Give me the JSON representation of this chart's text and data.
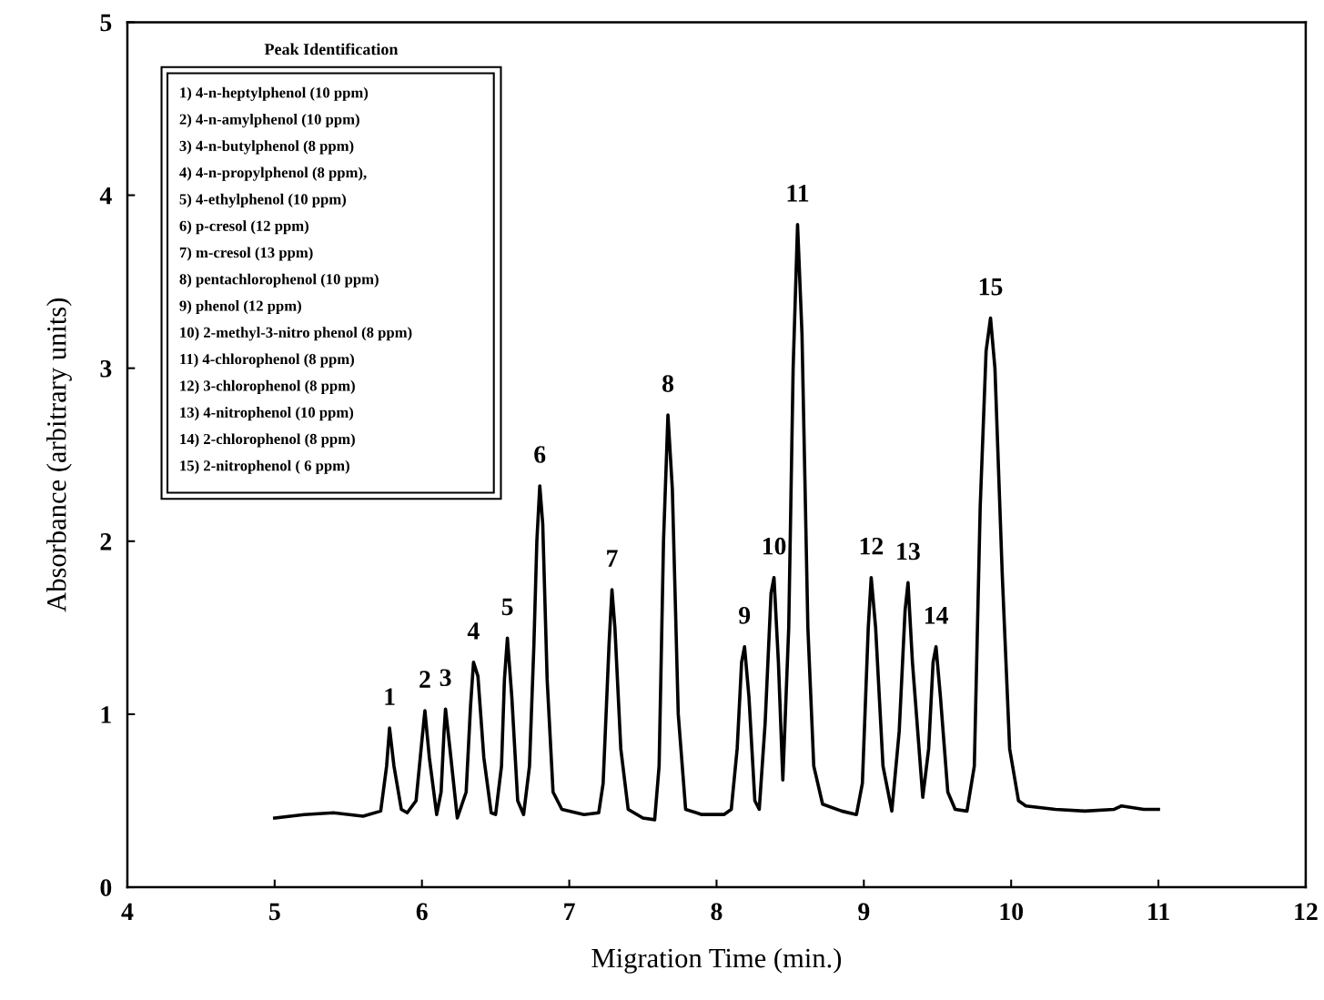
{
  "chart_data": {
    "type": "line",
    "xlabel": "Migration Time (min.)",
    "ylabel": "Absorbance (arbitrary units)",
    "xlim": [
      4,
      12
    ],
    "xticks": [
      4,
      5,
      6,
      7,
      8,
      9,
      10,
      11,
      12
    ],
    "ylim": [
      0,
      5
    ],
    "yticks": [
      0,
      1,
      2,
      3,
      4,
      5
    ],
    "grid": false,
    "legend": false,
    "marker": "none",
    "line_style": "solid",
    "series": [
      {
        "color": "#000000",
        "x": [
          5.0,
          5.2,
          5.4,
          5.6,
          5.72,
          5.76,
          5.78,
          5.81,
          5.86,
          5.9,
          5.96,
          6.0,
          6.02,
          6.05,
          6.1,
          6.13,
          6.15,
          6.16,
          6.19,
          6.24,
          6.3,
          6.33,
          6.35,
          6.38,
          6.42,
          6.47,
          6.5,
          6.54,
          6.56,
          6.58,
          6.61,
          6.65,
          6.69,
          6.73,
          6.76,
          6.78,
          6.8,
          6.82,
          6.85,
          6.89,
          6.95,
          7.1,
          7.2,
          7.23,
          7.27,
          7.29,
          7.31,
          7.35,
          7.4,
          7.5,
          7.58,
          7.61,
          7.64,
          7.67,
          7.7,
          7.74,
          7.79,
          7.9,
          8.05,
          8.1,
          8.14,
          8.17,
          8.19,
          8.22,
          8.26,
          8.29,
          8.33,
          8.37,
          8.39,
          8.42,
          8.45,
          8.49,
          8.52,
          8.55,
          8.58,
          8.62,
          8.66,
          8.72,
          8.85,
          8.95,
          8.99,
          9.03,
          9.05,
          9.08,
          9.13,
          9.19,
          9.24,
          9.28,
          9.3,
          9.33,
          9.4,
          9.44,
          9.47,
          9.49,
          9.52,
          9.57,
          9.62,
          9.7,
          9.75,
          9.79,
          9.83,
          9.86,
          9.89,
          9.94,
          9.99,
          10.05,
          10.1,
          10.3,
          10.5,
          10.7,
          10.75,
          10.9,
          11.0
        ],
        "values": [
          0.4,
          0.42,
          0.43,
          0.41,
          0.44,
          0.7,
          0.92,
          0.7,
          0.45,
          0.43,
          0.5,
          0.85,
          1.02,
          0.75,
          0.42,
          0.55,
          0.9,
          1.03,
          0.8,
          0.4,
          0.55,
          1.05,
          1.3,
          1.22,
          0.75,
          0.43,
          0.42,
          0.7,
          1.2,
          1.44,
          1.1,
          0.5,
          0.42,
          0.7,
          1.4,
          2.0,
          2.32,
          2.1,
          1.2,
          0.55,
          0.45,
          0.42,
          0.43,
          0.6,
          1.4,
          1.72,
          1.5,
          0.8,
          0.45,
          0.4,
          0.39,
          0.7,
          2.0,
          2.73,
          2.3,
          1.0,
          0.45,
          0.42,
          0.42,
          0.45,
          0.8,
          1.3,
          1.39,
          1.1,
          0.5,
          0.45,
          0.95,
          1.7,
          1.79,
          1.3,
          0.62,
          1.5,
          3.0,
          3.83,
          3.2,
          1.5,
          0.7,
          0.48,
          0.44,
          0.42,
          0.6,
          1.5,
          1.79,
          1.5,
          0.7,
          0.44,
          0.9,
          1.6,
          1.76,
          1.3,
          0.52,
          0.8,
          1.3,
          1.39,
          1.1,
          0.55,
          0.45,
          0.44,
          0.7,
          2.2,
          3.1,
          3.29,
          3.0,
          1.8,
          0.8,
          0.5,
          0.47,
          0.45,
          0.44,
          0.45,
          0.47,
          0.45,
          0.45
        ]
      }
    ],
    "annotations": [
      "Peak Identification",
      "1) 4-n-heptylphenol (10 ppm)",
      "2) 4-n-amylphenol (10 ppm)",
      "3) 4-n-butylphenol (8 ppm)",
      "4) 4-n-propylphenol (8 ppm),",
      "5) 4-ethylphenol (10 ppm)",
      "6) p-cresol (12 ppm)",
      "7) m-cresol (13 ppm)",
      "8) pentachlorophenol (10 ppm)",
      "9) phenol (12 ppm)",
      "10) 2-methyl-3-nitro phenol (8 ppm)",
      "11) 4-chlorophenol (8 ppm)",
      "12) 3-chlorophenol (8 ppm)",
      "13) 4-nitrophenol (10 ppm)",
      "14) 2-chlorophenol (8 ppm)",
      "15) 2-nitrophenol ( 6 ppm)",
      {
        "text": "1",
        "x": 5.78,
        "y": 0.92
      },
      {
        "text": "2",
        "x": 6.02,
        "y": 1.02
      },
      {
        "text": "3",
        "x": 6.16,
        "y": 1.03
      },
      {
        "text": "4",
        "x": 6.35,
        "y": 1.3
      },
      {
        "text": "5",
        "x": 6.58,
        "y": 1.44
      },
      {
        "text": "6",
        "x": 6.8,
        "y": 2.32
      },
      {
        "text": "7",
        "x": 7.29,
        "y": 1.72
      },
      {
        "text": "8",
        "x": 7.67,
        "y": 2.73
      },
      {
        "text": "9",
        "x": 8.19,
        "y": 1.39
      },
      {
        "text": "10",
        "x": 8.39,
        "y": 1.79
      },
      {
        "text": "11",
        "x": 8.55,
        "y": 3.83
      },
      {
        "text": "12",
        "x": 9.05,
        "y": 1.79
      },
      {
        "text": "13",
        "x": 9.3,
        "y": 1.76
      },
      {
        "text": "14",
        "x": 9.49,
        "y": 1.39
      },
      {
        "text": "15",
        "x": 9.86,
        "y": 3.29
      }
    ]
  }
}
